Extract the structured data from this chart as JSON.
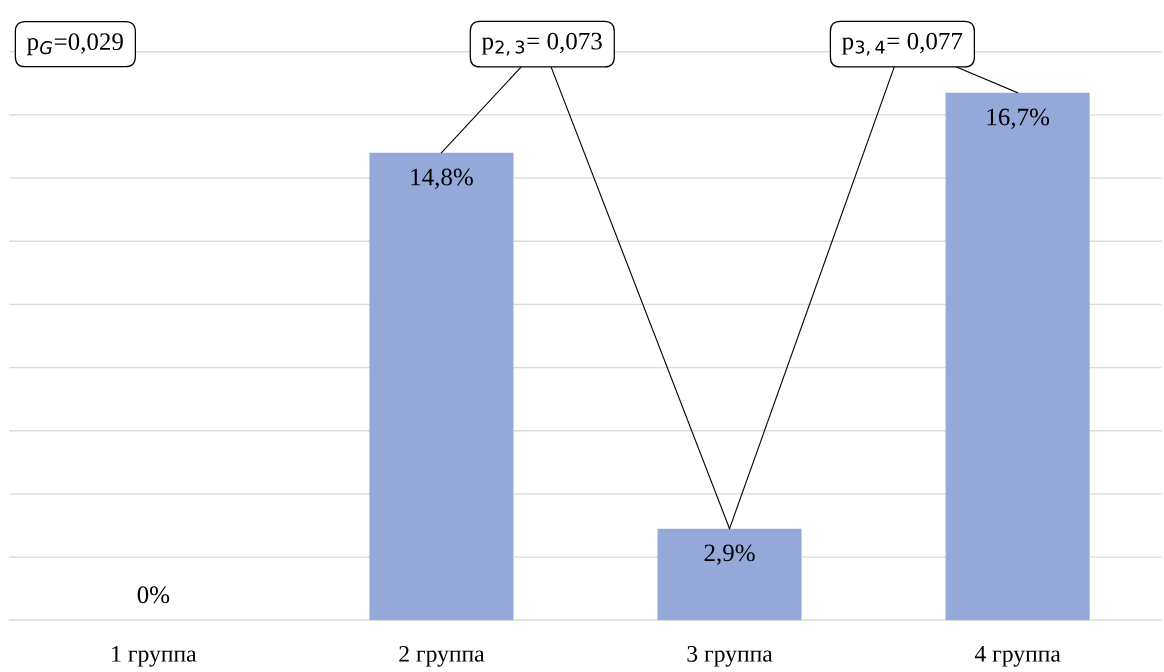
{
  "chart_data": {
    "type": "bar",
    "categories": [
      "1 группа",
      "2 группа",
      "3 группа",
      "4 группа"
    ],
    "values": [
      0,
      14.8,
      2.9,
      16.7
    ],
    "value_labels": [
      "0%",
      "14,8%",
      "2,9%",
      "16,7%"
    ],
    "color": "#94a9da",
    "ylim": [
      0,
      19
    ],
    "yticks": [
      {
        "value": 0,
        "label": null
      },
      {
        "value": 2,
        "label": null
      },
      {
        "value": 4,
        "label": null
      },
      {
        "value": 6,
        "label": null
      },
      {
        "value": 8,
        "label": null
      },
      {
        "value": 10,
        "label": null
      },
      {
        "value": 12,
        "label": null
      },
      {
        "value": 14,
        "label": null
      },
      {
        "value": 16,
        "label": null
      },
      {
        "value": 18,
        "label": null
      }
    ],
    "tick_labels": "x",
    "grid": "y",
    "annotations": [
      {
        "text": "p$_{G}$=0,029"
      },
      {
        "text": "p$_{2,3}$= 0,073",
        "x": "2 группа",
        "y": 14.8
      },
      {
        "text": "p$_{3,4}$= 0,077",
        "x": "3 группа",
        "y": 2.9
      }
    ]
  }
}
